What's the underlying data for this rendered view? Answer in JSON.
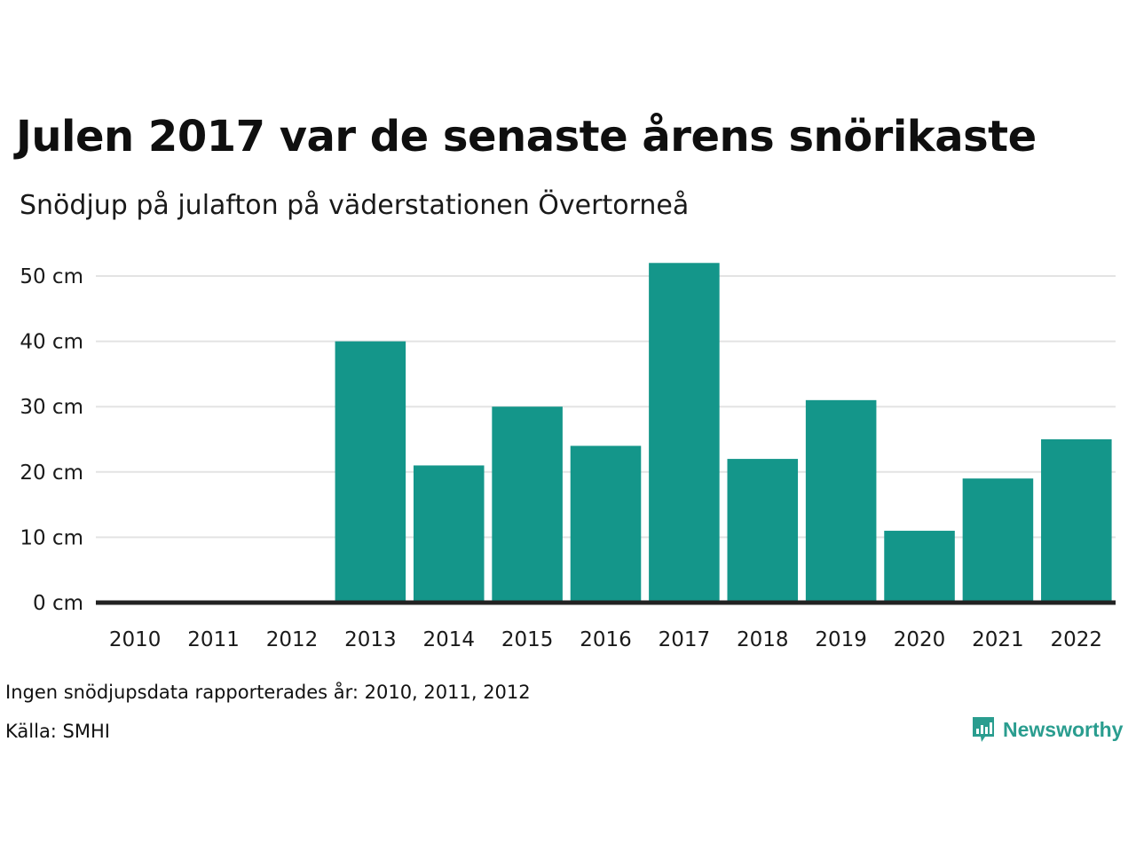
{
  "header": {
    "title": "Julen 2017 var de senaste årens snörikaste",
    "subtitle": "Snödjup på julafton på väderstationen Övertorneå"
  },
  "footer": {
    "note": "Ingen snödjupsdata rapporterades år: 2010, 2011, 2012",
    "source": "Källa: SMHI",
    "logo_text": "Newsworthy",
    "logo_icon": "bar-chart-speech-bubble-icon"
  },
  "colors": {
    "bar": "#14968a",
    "baseline": "#222222",
    "grid": "#e3e3e3",
    "logo": "#2a9d8f"
  },
  "chart_data": {
    "type": "bar",
    "title": "Julen 2017 var de senaste årens snörikaste",
    "subtitle": "Snödjup på julafton på väderstationen Övertorneå",
    "categories": [
      "2010",
      "2011",
      "2012",
      "2013",
      "2014",
      "2015",
      "2016",
      "2017",
      "2018",
      "2019",
      "2020",
      "2021",
      "2022"
    ],
    "values": [
      0,
      0,
      0,
      40,
      21,
      30,
      24,
      52,
      22,
      31,
      11,
      19,
      25
    ],
    "xlabel": "",
    "ylabel": "",
    "ylim": [
      0,
      50
    ],
    "yticks": [
      0,
      10,
      20,
      30,
      40,
      50
    ],
    "ytick_labels": [
      "0 cm",
      "10 cm",
      "20 cm",
      "30 cm",
      "40 cm",
      "50 cm"
    ],
    "grid": true,
    "legend": "none"
  }
}
